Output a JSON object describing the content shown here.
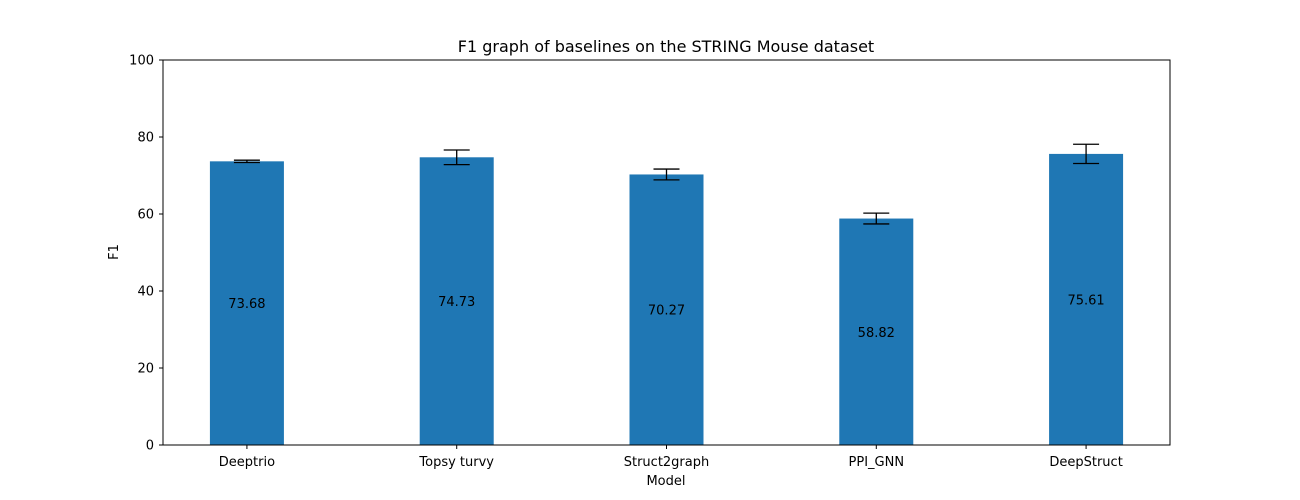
{
  "chart_data": {
    "type": "bar",
    "title": "F1 graph of baselines on the STRING Mouse dataset",
    "xlabel": "Model",
    "ylabel": "F1",
    "ylim": [
      0,
      100
    ],
    "yticks": [
      0,
      20,
      40,
      60,
      80,
      100
    ],
    "categories": [
      "Deeptrio",
      "Topsy turvy",
      "Struct2graph",
      "PPI_GNN",
      "DeepStruct"
    ],
    "values": [
      73.68,
      74.73,
      70.27,
      58.82,
      75.61
    ],
    "value_labels": [
      "73.68",
      "74.73",
      "70.27",
      "58.82",
      "75.61"
    ],
    "errors": [
      0.3,
      1.9,
      1.4,
      1.4,
      2.5
    ],
    "bar_color": "#1f77b4",
    "grid": false,
    "legend": "none"
  }
}
